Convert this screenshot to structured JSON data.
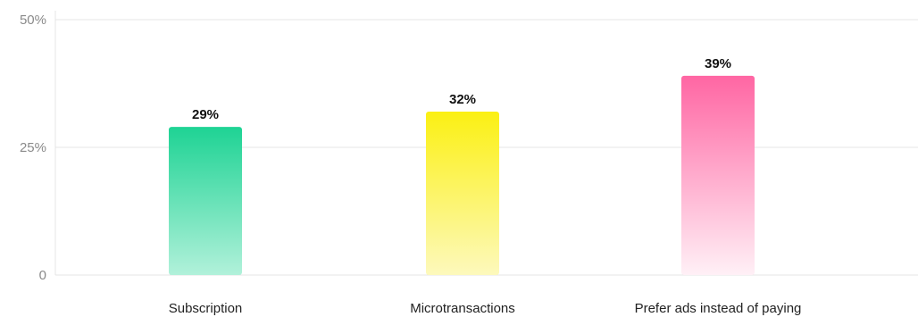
{
  "chart_data": {
    "type": "bar",
    "title": "",
    "xlabel": "",
    "ylabel": "",
    "categories": [
      "Subscription",
      "Microtransactions",
      "Prefer ads instead of paying"
    ],
    "values": [
      29,
      32,
      39
    ],
    "data_labels": [
      "29%",
      "32%",
      "39%"
    ],
    "bar_colors": [
      {
        "top": "#1ed394",
        "bottom": "#b1f1da"
      },
      {
        "top": "#fbf013",
        "bottom": "#fdf9bc"
      },
      {
        "top": "#ff66a3",
        "bottom": "#fff0f6"
      }
    ],
    "ylim": [
      0,
      50
    ],
    "yticks": [
      {
        "value": 0,
        "label": "0"
      },
      {
        "value": 25,
        "label": "25%"
      },
      {
        "value": 50,
        "label": "50%"
      }
    ],
    "grid": true,
    "legend": "none"
  }
}
